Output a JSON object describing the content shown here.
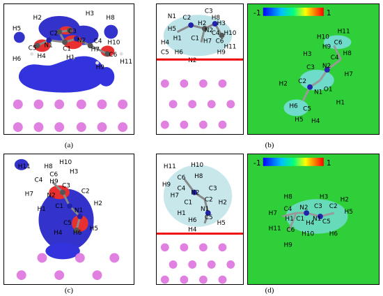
{
  "captions": {
    "a": "(a)",
    "b": "(b)",
    "c": "(c)",
    "d": "(d)"
  },
  "colorbar": {
    "min_label": "-1",
    "max_label": "1",
    "colors": [
      "#0000ff",
      "#00bfff",
      "#00ff7f",
      "#ffff00",
      "#ff8000",
      "#ff0000"
    ]
  },
  "panel_a_labels": [
    "H2",
    "H3",
    "H8",
    "H5",
    "C2",
    "C3",
    "N1",
    "N2",
    "C4",
    "H10",
    "C5",
    "C1",
    "H4",
    "H7",
    "C6",
    "H6",
    "H1",
    "H9",
    "H11"
  ],
  "panel_b_labels": [
    "C3",
    "N1",
    "H8",
    "C2",
    "H2",
    "H3",
    "H5",
    "N2",
    "C4",
    "H10",
    "H1",
    "C1",
    "H7",
    "C5",
    "H6",
    "C6",
    "H11",
    "H4",
    "H9",
    "N2"
  ],
  "panel_b_map_labels": [
    "H10",
    "H11",
    "C6",
    "H9",
    "H3",
    "C4",
    "H8",
    "N2",
    "C3",
    "H7",
    "H2",
    "C2",
    "O1",
    "N1",
    "H1",
    "H6",
    "C5",
    "H5",
    "H4"
  ],
  "panel_c_labels": [
    "H11",
    "H8",
    "H10",
    "C6",
    "H3",
    "C4",
    "H9",
    "C3",
    "C2",
    "H7",
    "N2",
    "N1",
    "H1",
    "C1",
    "H2",
    "C5",
    "H5",
    "H4",
    "H6"
  ],
  "panel_d_labels": [
    "H11",
    "H10",
    "C6",
    "H8",
    "C3",
    "H9",
    "N2",
    "C4",
    "C2",
    "H7",
    "H2",
    "N1",
    "C1",
    "H1",
    "C5",
    "H6",
    "H5",
    "H4"
  ],
  "panel_d_map_labels": [
    "H8",
    "H3",
    "H2",
    "C4",
    "N2",
    "C3",
    "C2",
    "H7",
    "H5",
    "H1",
    "C1",
    "N1",
    "H4",
    "C5",
    "H11",
    "C6",
    "H10",
    "H6",
    "H9"
  ]
}
